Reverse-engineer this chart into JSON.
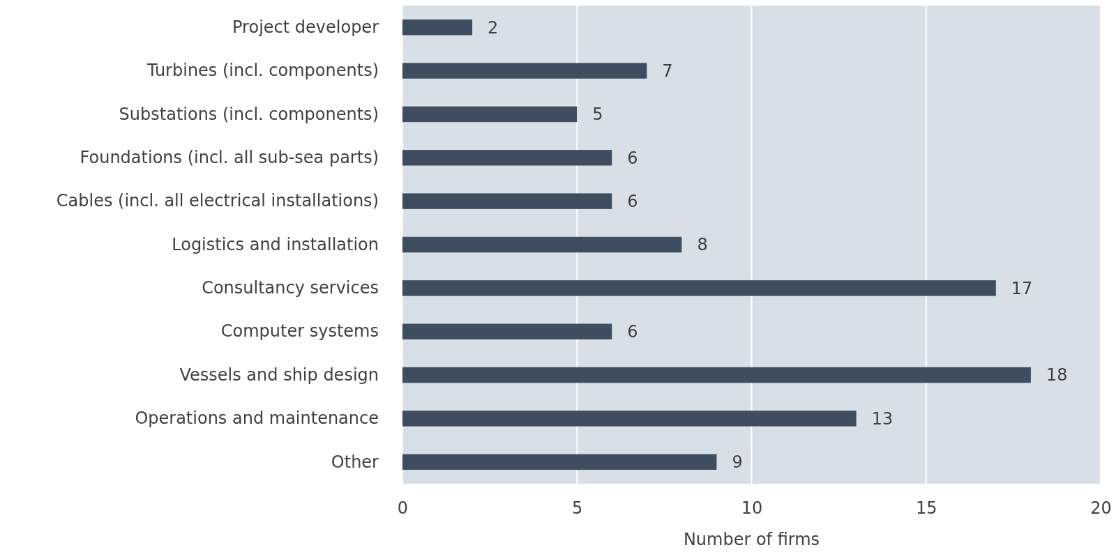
{
  "chart_data": {
    "type": "bar",
    "orientation": "horizontal",
    "xlabel": "Number of firms",
    "categories": [
      "Project developer",
      "Turbines (incl. components)",
      "Substations (incl. components)",
      "Foundations (incl. all sub-sea parts)",
      "Cables (incl. all electrical installations)",
      "Logistics and installation",
      "Consultancy services",
      "Computer systems",
      "Vessels and ship design",
      "Operations and maintenance",
      "Other"
    ],
    "values": [
      2,
      7,
      5,
      6,
      6,
      8,
      17,
      6,
      18,
      13,
      9
    ],
    "color": "#3e4e60",
    "xlim": [
      0,
      20
    ],
    "xticks": [
      0,
      5,
      10,
      15,
      20
    ],
    "grid": "x",
    "data_labels": true
  }
}
